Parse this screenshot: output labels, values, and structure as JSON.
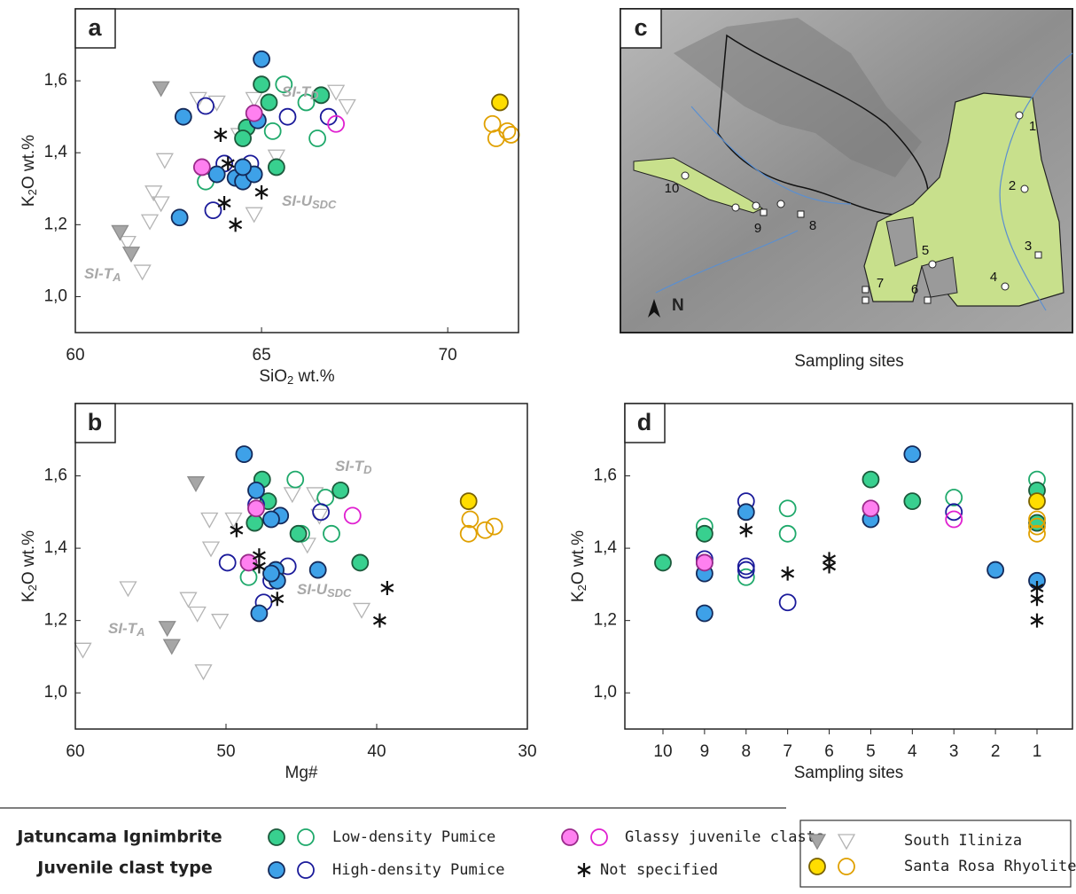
{
  "chart_data": [
    {
      "type": "scatter",
      "label": "a",
      "xlabel": [
        "SiO",
        "2",
        " wt.%"
      ],
      "ylabel": [
        "K",
        "2",
        "O wt.%"
      ],
      "xlim": [
        60,
        71.9
      ],
      "xticks": [
        60,
        65,
        70
      ],
      "ylim": [
        0.9,
        1.8
      ],
      "yticks": [
        {
          "value": 1.0,
          "label": "1,0"
        },
        {
          "value": 1.2,
          "label": "1,2"
        },
        {
          "value": 1.4,
          "label": "1,4"
        },
        {
          "value": 1.6,
          "label": "1,6"
        }
      ],
      "annotations": [
        {
          "text": "SI-T",
          "sub": "D"
        },
        {
          "text": "SI-U",
          "sub": "SDC"
        },
        {
          "text": "SI-T",
          "sub": "A"
        }
      ],
      "series": [
        {
          "marker": "triangle",
          "color": "#b4b4b4",
          "fill": null,
          "x": [
            63.3,
            63.8,
            64.8,
            67.0,
            67.3,
            62.4,
            62.1,
            62.3,
            62.0,
            61.4,
            61.8,
            64.8,
            65.4,
            64.4
          ],
          "values": [
            1.55,
            1.54,
            1.55,
            1.57,
            1.53,
            1.38,
            1.29,
            1.26,
            1.21,
            1.15,
            1.07,
            1.23,
            1.39,
            1.45
          ]
        },
        {
          "marker": "triangle",
          "color": "#8c8c8c",
          "fill": "#a6a6a6",
          "x": [
            62.3,
            61.2,
            61.5
          ],
          "values": [
            1.58,
            1.18,
            1.12
          ]
        },
        {
          "marker": "circle",
          "color": "#1fa96b",
          "fill": null,
          "x": [
            65.6,
            66.2,
            65.3,
            66.5,
            63.5
          ],
          "values": [
            1.59,
            1.54,
            1.46,
            1.44,
            1.32
          ]
        },
        {
          "marker": "circle",
          "color": "#1c5a3c",
          "fill": "#38d08f",
          "x": [
            65.0,
            66.6,
            65.2,
            64.6,
            64.5,
            65.4
          ],
          "values": [
            1.59,
            1.56,
            1.54,
            1.47,
            1.44,
            1.36
          ]
        },
        {
          "marker": "circle",
          "color": "#1a1a9a",
          "fill": null,
          "x": [
            63.5,
            65.7,
            66.8,
            63.7,
            64.0,
            64.7
          ],
          "values": [
            1.53,
            1.5,
            1.5,
            1.24,
            1.37,
            1.37
          ]
        },
        {
          "marker": "circle",
          "color": "#142a5a",
          "fill": "#3ea1e8",
          "x": [
            65.0,
            62.9,
            64.9,
            62.8,
            63.8,
            64.3,
            64.5,
            64.8,
            64.5
          ],
          "values": [
            1.66,
            1.5,
            1.49,
            1.22,
            1.34,
            1.33,
            1.32,
            1.34,
            1.36
          ]
        },
        {
          "marker": "circle",
          "color": "#e020d0",
          "fill": null,
          "x": [
            67.0
          ],
          "values": [
            1.48
          ]
        },
        {
          "marker": "circle",
          "color": "#9a2a8a",
          "fill": "#ff80f0",
          "x": [
            63.4,
            64.8
          ],
          "values": [
            1.36,
            1.51
          ]
        },
        {
          "marker": "asterisk",
          "color": "#111111",
          "fill": null,
          "x": [
            63.9,
            64.1,
            65.0,
            64.0,
            64.3
          ],
          "values": [
            1.45,
            1.37,
            1.29,
            1.26,
            1.2
          ]
        },
        {
          "marker": "circle",
          "color": "#e0a000",
          "fill": null,
          "x": [
            71.2,
            71.3,
            71.6,
            71.7
          ],
          "values": [
            1.48,
            1.44,
            1.46,
            1.45
          ]
        },
        {
          "marker": "circle",
          "color": "#7a6200",
          "fill": "#ffdd00",
          "x": [
            71.4
          ],
          "values": [
            1.54
          ]
        }
      ]
    },
    {
      "type": "scatter",
      "label": "b",
      "xlabel": [
        "Mg#"
      ],
      "ylabel": [
        "K",
        "2",
        "O wt.%"
      ],
      "xlim": [
        60,
        30
      ],
      "xticks": [
        60,
        50,
        40,
        30
      ],
      "ylim": [
        0.9,
        1.8
      ],
      "yticks": [
        {
          "value": 1.0,
          "label": "1,0"
        },
        {
          "value": 1.2,
          "label": "1,2"
        },
        {
          "value": 1.4,
          "label": "1,4"
        },
        {
          "value": 1.6,
          "label": "1,6"
        }
      ],
      "annotations": [
        {
          "text": "SI-T",
          "sub": "D"
        },
        {
          "text": "SI-U",
          "sub": "SDC"
        },
        {
          "text": "SI-T",
          "sub": "A"
        }
      ],
      "series": [
        {
          "marker": "triangle",
          "color": "#b4b4b4",
          "fill": null,
          "x": [
            59.5,
            56.5,
            52.5,
            51.9,
            51.5,
            50.4,
            51.0,
            51.1,
            49.5,
            45.6,
            44.1,
            43.8,
            41.0,
            44.6
          ],
          "values": [
            1.12,
            1.29,
            1.26,
            1.22,
            1.06,
            1.2,
            1.4,
            1.48,
            1.48,
            1.55,
            1.55,
            1.49,
            1.23,
            1.41
          ]
        },
        {
          "marker": "triangle",
          "color": "#8c8c8c",
          "fill": "#a6a6a6",
          "x": [
            52.0,
            53.9,
            53.6
          ],
          "values": [
            1.58,
            1.18,
            1.13
          ]
        },
        {
          "marker": "circle",
          "color": "#1fa96b",
          "fill": null,
          "x": [
            45.4,
            43.4,
            45.0,
            43.0,
            48.5
          ],
          "values": [
            1.59,
            1.54,
            1.44,
            1.44,
            1.32
          ]
        },
        {
          "marker": "circle",
          "color": "#1c5a3c",
          "fill": "#38d08f",
          "x": [
            47.6,
            42.4,
            47.2,
            48.1,
            45.2,
            41.1
          ],
          "values": [
            1.59,
            1.56,
            1.53,
            1.47,
            1.44,
            1.36
          ]
        },
        {
          "marker": "circle",
          "color": "#1a1a9a",
          "fill": null,
          "x": [
            49.9,
            48.0,
            43.7,
            45.9,
            47.5,
            47.0
          ],
          "values": [
            1.36,
            1.52,
            1.5,
            1.35,
            1.25,
            1.31
          ]
        },
        {
          "marker": "circle",
          "color": "#142a5a",
          "fill": "#3ea1e8",
          "x": [
            48.8,
            48.0,
            46.4,
            47.0,
            43.9,
            47.8,
            46.7,
            46.6,
            47.0
          ],
          "values": [
            1.66,
            1.56,
            1.49,
            1.48,
            1.34,
            1.22,
            1.34,
            1.31,
            1.33
          ]
        },
        {
          "marker": "circle",
          "color": "#e020d0",
          "fill": null,
          "x": [
            41.6
          ],
          "values": [
            1.49
          ]
        },
        {
          "marker": "circle",
          "color": "#9a2a8a",
          "fill": "#ff80f0",
          "x": [
            48.0,
            48.5
          ],
          "values": [
            1.51,
            1.36
          ]
        },
        {
          "marker": "asterisk",
          "color": "#111111",
          "fill": null,
          "x": [
            49.3,
            47.8,
            47.8,
            46.6,
            39.3,
            39.8
          ],
          "values": [
            1.45,
            1.38,
            1.35,
            1.26,
            1.29,
            1.2
          ]
        },
        {
          "marker": "circle",
          "color": "#e0a000",
          "fill": null,
          "x": [
            33.8,
            33.9,
            32.8,
            32.2
          ],
          "values": [
            1.48,
            1.44,
            1.45,
            1.46
          ]
        },
        {
          "marker": "circle",
          "color": "#7a6200",
          "fill": "#ffdd00",
          "x": [
            33.9
          ],
          "values": [
            1.53
          ]
        }
      ]
    },
    {
      "type": "scatter",
      "label": "d",
      "xlabel": [
        "Sampling sites"
      ],
      "ylabel": [
        "K",
        "2",
        "O wt.%"
      ],
      "categories": [
        "10",
        "9",
        "8",
        "7",
        "6",
        "5",
        "4",
        "3",
        "2",
        "1"
      ],
      "ylim": [
        0.9,
        1.8
      ],
      "yticks": [
        {
          "value": 1.0,
          "label": "1,0"
        },
        {
          "value": 1.2,
          "label": "1,2"
        },
        {
          "value": 1.4,
          "label": "1,4"
        },
        {
          "value": 1.6,
          "label": "1,6"
        }
      ],
      "series": [
        {
          "marker": "circle",
          "color": "#1fa96b",
          "fill": null,
          "x": [
            "9",
            "8",
            "7",
            "7",
            "3",
            "1"
          ],
          "values": [
            1.46,
            1.32,
            1.51,
            1.44,
            1.54,
            1.59
          ]
        },
        {
          "marker": "circle",
          "color": "#1c5a3c",
          "fill": "#38d08f",
          "x": [
            "10",
            "9",
            "5",
            "4",
            "1",
            "1"
          ],
          "values": [
            1.36,
            1.44,
            1.59,
            1.53,
            1.56,
            1.47
          ]
        },
        {
          "marker": "circle",
          "color": "#1a1a9a",
          "fill": null,
          "x": [
            "9",
            "9",
            "8",
            "8",
            "8",
            "7",
            "3"
          ],
          "values": [
            1.36,
            1.37,
            1.53,
            1.35,
            1.34,
            1.25,
            1.5
          ]
        },
        {
          "marker": "circle",
          "color": "#142a5a",
          "fill": "#3ea1e8",
          "x": [
            "9",
            "9",
            "8",
            "5",
            "4",
            "2",
            "1"
          ],
          "values": [
            1.22,
            1.33,
            1.5,
            1.48,
            1.66,
            1.34,
            1.31
          ]
        },
        {
          "marker": "circle",
          "color": "#e020d0",
          "fill": null,
          "x": [
            "3"
          ],
          "values": [
            1.48
          ]
        },
        {
          "marker": "circle",
          "color": "#9a2a8a",
          "fill": "#ff80f0",
          "x": [
            "9",
            "5"
          ],
          "values": [
            1.36,
            1.51
          ]
        },
        {
          "marker": "asterisk",
          "color": "#111111",
          "fill": null,
          "x": [
            "8",
            "7",
            "6",
            "6",
            "1",
            "1",
            "1"
          ],
          "values": [
            1.45,
            1.33,
            1.37,
            1.35,
            1.29,
            1.26,
            1.2
          ]
        },
        {
          "marker": "circle",
          "color": "#e0a000",
          "fill": null,
          "x": [
            "1",
            "1",
            "1"
          ],
          "values": [
            1.48,
            1.44,
            1.46
          ]
        },
        {
          "marker": "circle",
          "color": "#7a6200",
          "fill": "#ffdd00",
          "x": [
            "1"
          ],
          "values": [
            1.53
          ]
        }
      ]
    }
  ],
  "map": {
    "label": "c",
    "caption": "Sampling sites",
    "north": "N",
    "sites": [
      "1",
      "2",
      "3",
      "4",
      "5",
      "6",
      "7",
      "8",
      "9",
      "10"
    ]
  },
  "legend": {
    "title": [
      "Jatuncama Ignimbrite",
      "Juvenile clast type"
    ],
    "entries": [
      {
        "label": "Low-density Pumice",
        "markers": [
          {
            "marker": "circle",
            "color": "#1c5a3c",
            "fill": "#38d08f"
          },
          {
            "marker": "circle",
            "color": "#1fa96b",
            "fill": null
          }
        ]
      },
      {
        "label": "High-density Pumice",
        "markers": [
          {
            "marker": "circle",
            "color": "#142a5a",
            "fill": "#3ea1e8"
          },
          {
            "marker": "circle",
            "color": "#1a1a9a",
            "fill": null
          }
        ]
      },
      {
        "label": "Glassy juvenile clasts",
        "markers": [
          {
            "marker": "circle",
            "color": "#9a2a8a",
            "fill": "#ff80f0"
          },
          {
            "marker": "circle",
            "color": "#e020d0",
            "fill": null
          }
        ]
      },
      {
        "label": "Not specified",
        "markers": [
          {
            "marker": "asterisk",
            "color": "#111111",
            "fill": null
          }
        ]
      },
      {
        "label": "South Iliniza",
        "markers": [
          {
            "marker": "triangle",
            "color": "#8c8c8c",
            "fill": "#a6a6a6"
          },
          {
            "marker": "triangle",
            "color": "#b4b4b4",
            "fill": null
          }
        ]
      },
      {
        "label": "Santa Rosa Rhyolites",
        "markers": [
          {
            "marker": "circle",
            "color": "#7a6200",
            "fill": "#ffdd00"
          },
          {
            "marker": "circle",
            "color": "#e0a000",
            "fill": null
          }
        ]
      }
    ]
  }
}
